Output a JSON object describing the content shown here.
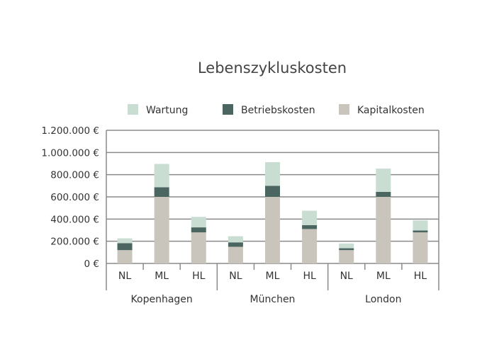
{
  "chart_data": {
    "type": "bar",
    "stacked": true,
    "title": "Lebenszykluskosten",
    "xlabel": "",
    "ylabel": "",
    "ylim": [
      0,
      1200000
    ],
    "yticks": [
      0,
      200000,
      400000,
      600000,
      800000,
      1000000,
      1200000
    ],
    "ytick_labels": [
      "0 €",
      "200.000 €",
      "400.000 €",
      "600.000 €",
      "800.000 €",
      "1.000.000 €",
      "1.200.000 €"
    ],
    "grid": true,
    "legend_position": "top",
    "groups": [
      "Kopenhagen",
      "München",
      "London"
    ],
    "categories": [
      "NL",
      "ML",
      "HL",
      "NL",
      "ML",
      "HL",
      "NL",
      "ML",
      "HL"
    ],
    "series": [
      {
        "name": "Kapitalkosten",
        "color": "#c9c5bc",
        "values": [
          120000,
          600000,
          280000,
          150000,
          600000,
          310000,
          120000,
          600000,
          280000
        ]
      },
      {
        "name": "Betriebskosten",
        "color": "#4b6660",
        "values": [
          63000,
          87000,
          45000,
          40000,
          100000,
          35000,
          17000,
          45000,
          17000
        ]
      },
      {
        "name": "Wartung",
        "color": "#c9ddd3",
        "values": [
          43000,
          210000,
          95000,
          55000,
          213000,
          130000,
          43000,
          210000,
          91000
        ]
      }
    ],
    "legend_order": [
      "Wartung",
      "Betriebskosten",
      "Kapitalkosten"
    ]
  }
}
